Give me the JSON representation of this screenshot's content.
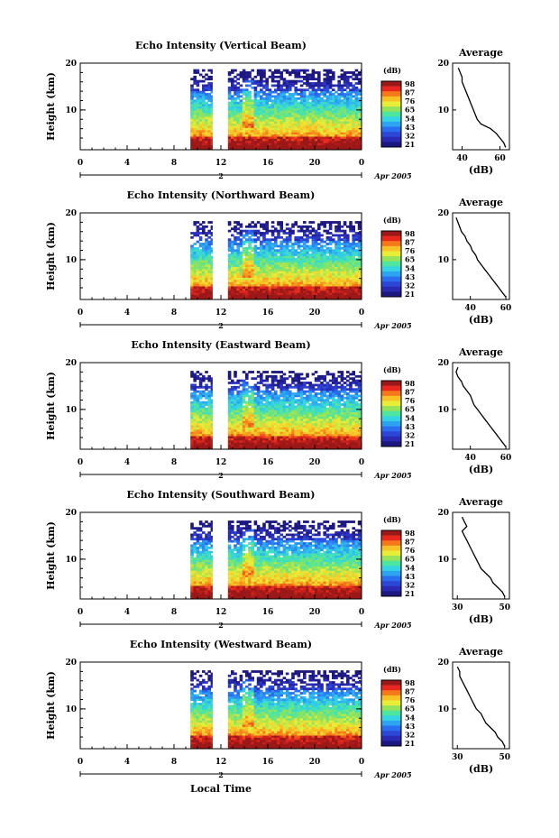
{
  "figure": {
    "xlabel": "Local Time",
    "date_label": "Apr 2005",
    "day_label": "2"
  },
  "colorbar": {
    "unit": "(dB)",
    "ticks": [
      "98",
      "87",
      "76",
      "65",
      "54",
      "43",
      "32",
      "21"
    ],
    "colors": [
      "#9a1818",
      "#e8281e",
      "#f6781a",
      "#f8c226",
      "#e8ee38",
      "#96e258",
      "#4ce6a0",
      "#34d4e2",
      "#2ca4f2",
      "#2a6ef0",
      "#2c46d8",
      "#2a2ab2",
      "#1c1880"
    ]
  },
  "chart_data": [
    {
      "type": "heatmap",
      "title": "Echo Intensity (Vertical Beam)",
      "ylabel": "Height (km)",
      "x_ticks": [
        "0",
        "4",
        "8",
        "12",
        "16",
        "20",
        "0"
      ],
      "y_ticks": [
        "20",
        "10"
      ],
      "xlim": [
        0,
        24
      ],
      "ylim": [
        1.5,
        20
      ],
      "data_intervals_hours": [
        [
          9.4,
          11.3
        ],
        [
          12.6,
          24
        ]
      ],
      "echo_top_km": 18.7,
      "profile": {
        "title": "Average",
        "xlabel": "(dB)",
        "x_ticks": [
          "40",
          "60"
        ],
        "y_ticks": [
          "20",
          "10"
        ],
        "xlim": [
          35,
          65
        ],
        "heights_km": [
          2,
          3,
          4,
          5,
          6,
          7,
          8,
          9,
          10,
          11,
          12,
          13,
          14,
          15,
          16,
          17,
          18,
          19
        ],
        "values_db": [
          63,
          62,
          60,
          58,
          55,
          50,
          48,
          47,
          46,
          45,
          44,
          43,
          42,
          41,
          40,
          40,
          39,
          38
        ]
      }
    },
    {
      "type": "heatmap",
      "title": "Echo Intensity (Northward Beam)",
      "ylabel": "Height (km)",
      "x_ticks": [
        "0",
        "4",
        "8",
        "12",
        "16",
        "20",
        "0"
      ],
      "y_ticks": [
        "20",
        "10"
      ],
      "xlim": [
        0,
        24
      ],
      "ylim": [
        1.5,
        20
      ],
      "data_intervals_hours": [
        [
          9.4,
          11.3
        ],
        [
          12.6,
          24
        ]
      ],
      "echo_top_km": 18.0,
      "profile": {
        "title": "Average",
        "xlabel": "(dB)",
        "x_ticks": [
          "40",
          "60"
        ],
        "y_ticks": [
          "20",
          "10"
        ],
        "xlim": [
          30,
          62
        ],
        "heights_km": [
          2,
          3,
          4,
          5,
          6,
          7,
          8,
          9,
          10,
          11,
          12,
          13,
          14,
          15,
          16,
          17,
          18,
          19
        ],
        "values_db": [
          60,
          58,
          56,
          54,
          52,
          50,
          48,
          46,
          44,
          43,
          41,
          40,
          38,
          37,
          35,
          34,
          33,
          32
        ]
      }
    },
    {
      "type": "heatmap",
      "title": "Echo Intensity (Eastward Beam)",
      "ylabel": "Height (km)",
      "x_ticks": [
        "0",
        "4",
        "8",
        "12",
        "16",
        "20",
        "0"
      ],
      "y_ticks": [
        "20",
        "10"
      ],
      "xlim": [
        0,
        24
      ],
      "ylim": [
        1.5,
        20
      ],
      "data_intervals_hours": [
        [
          9.4,
          11.3
        ],
        [
          12.6,
          24
        ]
      ],
      "echo_top_km": 18.0,
      "profile": {
        "title": "Average",
        "xlabel": "(dB)",
        "x_ticks": [
          "40",
          "60"
        ],
        "y_ticks": [
          "20",
          "10"
        ],
        "xlim": [
          30,
          62
        ],
        "heights_km": [
          2,
          3,
          4,
          5,
          6,
          7,
          8,
          9,
          10,
          11,
          12,
          13,
          14,
          15,
          16,
          17,
          18,
          19
        ],
        "values_db": [
          60,
          58,
          56,
          54,
          52,
          50,
          48,
          46,
          44,
          42,
          41,
          40,
          38,
          36,
          35,
          33,
          32,
          33
        ]
      }
    },
    {
      "type": "heatmap",
      "title": "Echo Intensity (Southward Beam)",
      "ylabel": "Height (km)",
      "x_ticks": [
        "0",
        "4",
        "8",
        "12",
        "16",
        "20",
        "0"
      ],
      "y_ticks": [
        "20",
        "10"
      ],
      "xlim": [
        0,
        24
      ],
      "ylim": [
        1.5,
        20
      ],
      "data_intervals_hours": [
        [
          9.4,
          11.3
        ],
        [
          12.6,
          24
        ]
      ],
      "echo_top_km": 18.2,
      "profile": {
        "title": "Average",
        "xlabel": "(dB)",
        "x_ticks": [
          "30",
          "50"
        ],
        "y_ticks": [
          "20",
          "10"
        ],
        "xlim": [
          28,
          52
        ],
        "heights_km": [
          2,
          3,
          4,
          5,
          6,
          7,
          8,
          9,
          10,
          11,
          12,
          13,
          14,
          15,
          16,
          17,
          18,
          19
        ],
        "values_db": [
          50,
          49,
          47,
          45,
          44,
          42,
          40,
          39,
          38,
          37,
          36,
          35,
          34,
          33,
          32,
          34,
          33,
          32
        ]
      }
    },
    {
      "type": "heatmap",
      "title": "Echo Intensity (Westward Beam)",
      "ylabel": "Height (km)",
      "x_ticks": [
        "0",
        "4",
        "8",
        "12",
        "16",
        "20",
        "0"
      ],
      "y_ticks": [
        "20",
        "10"
      ],
      "xlim": [
        0,
        24
      ],
      "ylim": [
        1.5,
        20
      ],
      "data_intervals_hours": [
        [
          9.4,
          11.3
        ],
        [
          12.6,
          24
        ]
      ],
      "echo_top_km": 17.8,
      "profile": {
        "title": "Average",
        "xlabel": "(dB)",
        "x_ticks": [
          "30",
          "50"
        ],
        "y_ticks": [
          "20",
          "10"
        ],
        "xlim": [
          28,
          52
        ],
        "heights_km": [
          2,
          3,
          4,
          5,
          6,
          7,
          8,
          9,
          10,
          11,
          12,
          13,
          14,
          15,
          16,
          17,
          18,
          19
        ],
        "values_db": [
          50,
          49,
          47,
          46,
          44,
          42,
          41,
          40,
          38,
          37,
          36,
          35,
          34,
          33,
          32,
          31,
          31,
          30
        ]
      }
    }
  ]
}
